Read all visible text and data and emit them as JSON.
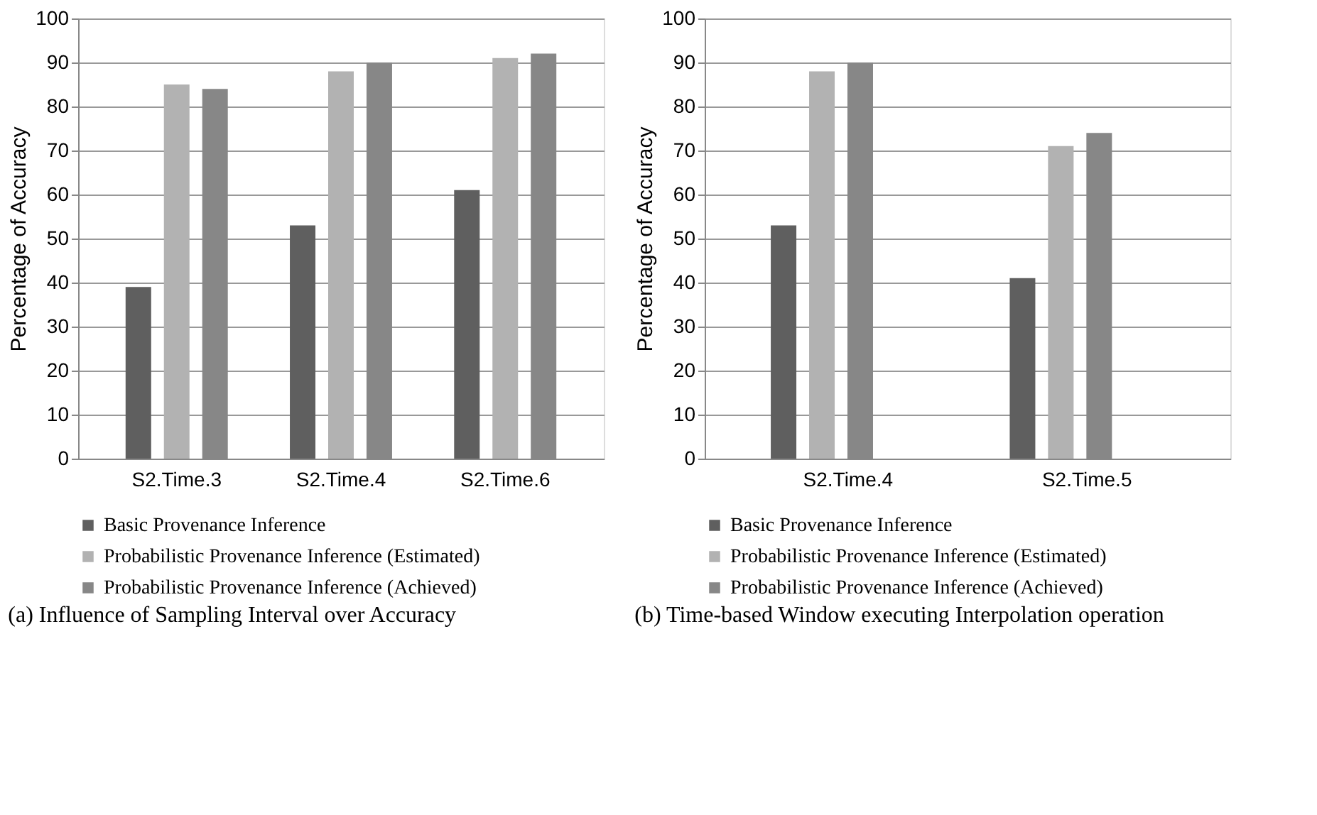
{
  "chart_data": [
    {
      "type": "bar",
      "ylabel": "Percentage of Accuracy",
      "categories": [
        "S2.Time.3",
        "S2.Time.4",
        "S2.Time.6"
      ],
      "series": [
        {
          "name": "Basic Provenance Inference",
          "color": "#5f5f5f",
          "values": [
            39,
            53,
            61
          ]
        },
        {
          "name": "Probabilistic Provenance Inference (Estimated)",
          "color": "#b2b2b2",
          "values": [
            85,
            88,
            91
          ]
        },
        {
          "name": "Probabilistic Provenance Inference (Achieved)",
          "color": "#878787",
          "values": [
            84,
            90,
            92
          ]
        }
      ],
      "ylim": [
        0,
        100
      ],
      "yticks": [
        0,
        10,
        20,
        30,
        40,
        50,
        60,
        70,
        80,
        90,
        100
      ],
      "grid": "y",
      "legend": "bottom",
      "annotations": [
        "(a) Influence of Sampling Interval over Accuracy"
      ]
    },
    {
      "type": "bar",
      "ylabel": "Percentage of Accuracy",
      "categories": [
        "S2.Time.4",
        "S2.Time.5"
      ],
      "series": [
        {
          "name": "Basic Provenance Inference",
          "color": "#5f5f5f",
          "values": [
            53,
            41
          ]
        },
        {
          "name": "Probabilistic Provenance Inference (Estimated)",
          "color": "#b2b2b2",
          "values": [
            88,
            71
          ]
        },
        {
          "name": "Probabilistic Provenance Inference (Achieved)",
          "color": "#878787",
          "values": [
            90,
            74
          ]
        }
      ],
      "ylim": [
        0,
        100
      ],
      "yticks": [
        0,
        10,
        20,
        30,
        40,
        50,
        60,
        70,
        80,
        90,
        100
      ],
      "grid": "y",
      "legend": "bottom",
      "annotations": [
        "(b) Time-based Window executing Interpolation operation"
      ]
    }
  ]
}
